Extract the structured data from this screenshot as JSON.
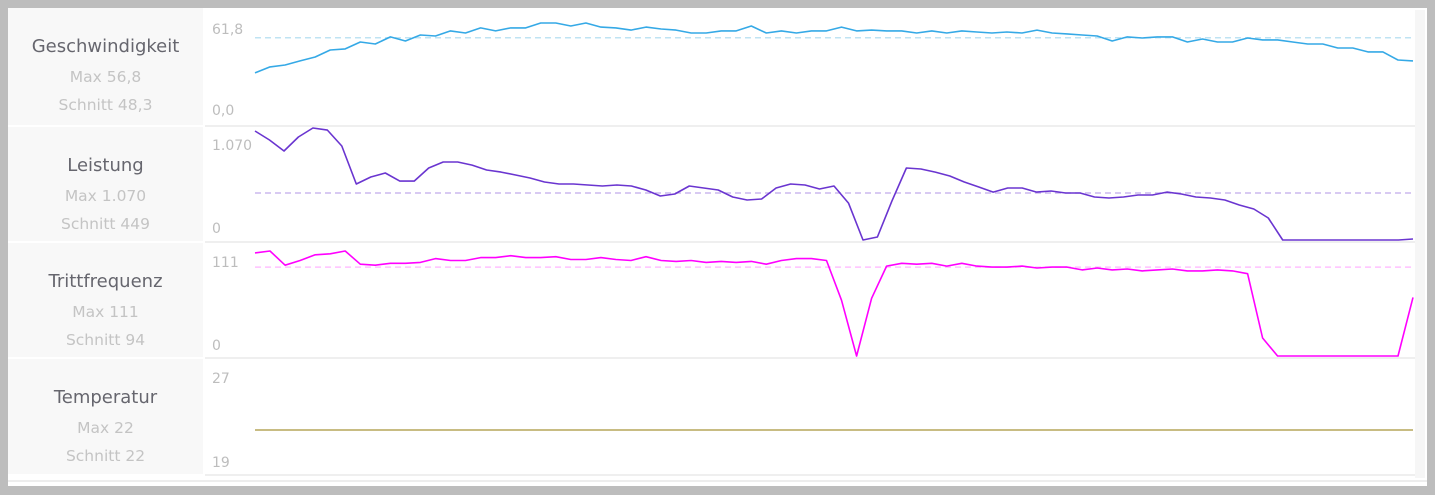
{
  "chart_data": [
    {
      "type": "line",
      "title": "Geschwindigkeit",
      "max_label": "Max 56,8",
      "avg_label": "Schnitt 48,3",
      "y_top_label": "61,8",
      "y_bottom_label": "0,0",
      "ylim": [
        0,
        61.8
      ],
      "average": 48.3,
      "color": "#35a9e6",
      "avg_color": "#bfe3f3",
      "values": [
        28.4,
        31.8,
        32.9,
        35.2,
        37.4,
        41.4,
        42.0,
        45.9,
        44.8,
        48.8,
        46.5,
        49.9,
        49.3,
        52.2,
        51.0,
        53.9,
        52.2,
        53.9,
        53.9,
        56.7,
        56.7,
        55.0,
        56.7,
        54.4,
        53.9,
        52.7,
        54.4,
        53.3,
        52.7,
        51.0,
        51.0,
        52.2,
        52.2,
        55.0,
        51.0,
        52.2,
        51.0,
        52.2,
        52.2,
        54.4,
        52.2,
        52.7,
        52.2,
        52.2,
        51.0,
        52.2,
        51.0,
        52.2,
        51.6,
        51.0,
        51.6,
        51.0,
        52.7,
        51.0,
        50.5,
        49.9,
        49.3,
        46.5,
        48.8,
        48.2,
        48.8,
        48.8,
        45.9,
        47.6,
        45.9,
        45.9,
        48.2,
        47.1,
        47.1,
        45.9,
        44.8,
        44.8,
        42.5,
        42.5,
        40.3,
        40.3,
        35.7,
        35.2
      ]
    },
    {
      "type": "line",
      "title": "Leistung",
      "max_label": "Max 1.070",
      "avg_label": "Schnitt 449",
      "y_top_label": "1.070",
      "y_bottom_label": "0",
      "ylim": [
        0,
        1070
      ],
      "average": 449,
      "color": "#6a35d0",
      "avg_color": "#cbb8ee",
      "values": [
        1041,
        955,
        850,
        984,
        1070,
        1050,
        898,
        535,
        602,
        640,
        563,
        563,
        688,
        745,
        745,
        716,
        669,
        649,
        621,
        592,
        554,
        535,
        535,
        525,
        516,
        525,
        516,
        478,
        420,
        439,
        516,
        497,
        478,
        411,
        382,
        392,
        497,
        535,
        525,
        487,
        516,
        353,
        0,
        29,
        372,
        688,
        678,
        649,
        611,
        554,
        506,
        458,
        497,
        497,
        458,
        468,
        449,
        449,
        411,
        401,
        411,
        430,
        430,
        458,
        439,
        411,
        401,
        382,
        334,
        296,
        210,
        0,
        0,
        0,
        0,
        0,
        0,
        0,
        0,
        0,
        10
      ]
    },
    {
      "type": "line",
      "title": "Trittfrequenz",
      "max_label": "Max 111",
      "avg_label": "Schnitt 94",
      "y_top_label": "111",
      "y_bottom_label": "0",
      "ylim": [
        0,
        111
      ],
      "average": 94,
      "color": "#ff00ff",
      "avg_color": "#ffc0ff",
      "values": [
        109,
        111,
        96,
        101,
        107,
        108,
        111,
        97,
        96,
        98,
        98,
        99,
        103,
        101,
        101,
        104,
        104,
        106,
        104,
        104,
        105,
        102,
        102,
        104,
        102,
        101,
        105,
        101,
        100,
        101,
        99,
        100,
        99,
        100,
        97,
        101,
        103,
        103,
        101,
        59,
        0,
        61,
        95,
        98,
        97,
        98,
        95,
        98,
        95,
        94,
        94,
        95,
        93,
        94,
        94,
        91,
        93,
        91,
        92,
        90,
        91,
        92,
        90,
        90,
        91,
        90,
        87,
        19,
        0,
        0,
        0,
        0,
        0,
        0,
        0,
        0,
        0,
        62
      ]
    },
    {
      "type": "line",
      "title": "Temperatur",
      "max_label": "Max 22",
      "avg_label": "Schnitt 22",
      "y_top_label": "27",
      "y_bottom_label": "19",
      "ylim": [
        19,
        27
      ],
      "average": 22,
      "color": "#b5a55a",
      "values": [
        22,
        22
      ]
    }
  ]
}
